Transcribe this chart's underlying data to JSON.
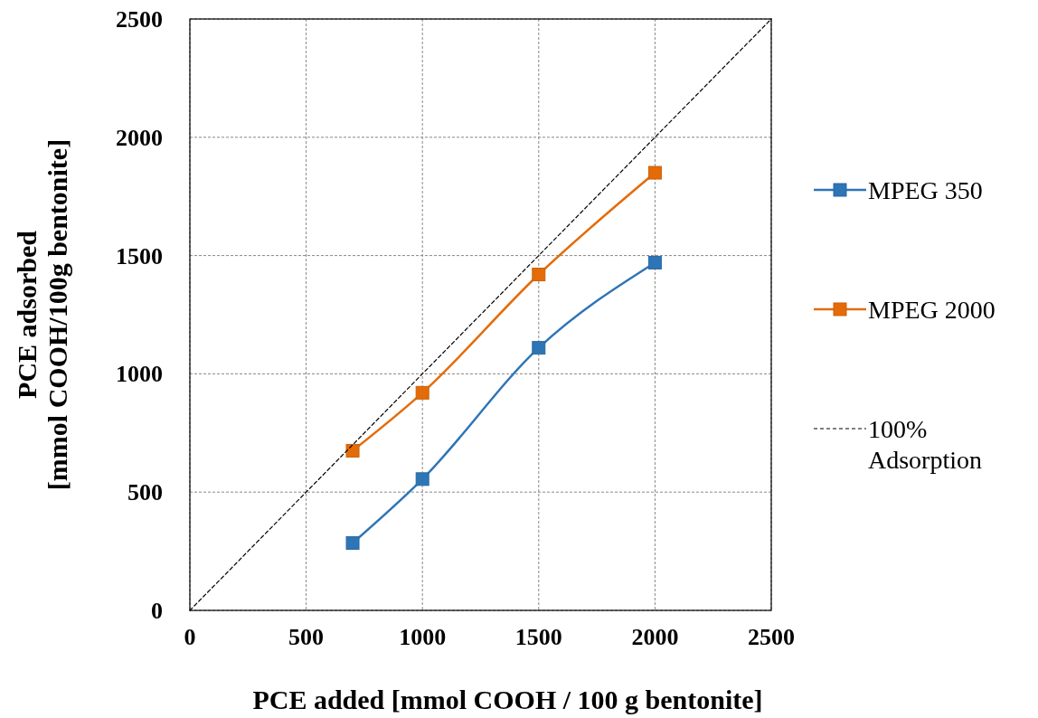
{
  "chart_data": {
    "type": "line",
    "xlabel": "PCE added [mmol COOH / 100 g bentonite]",
    "ylabel": "PCE adsorbed\n[mmol COOH/100g bentonite]",
    "xlim": [
      0,
      2500
    ],
    "xticks": [
      0,
      500,
      1000,
      1500,
      2000,
      2500
    ],
    "ylim": [
      0,
      2500
    ],
    "yticks": [
      0,
      500,
      1000,
      1500,
      2000,
      2500
    ],
    "grid": true,
    "legend": "right",
    "series": [
      {
        "name": "MPEG 350",
        "color": "#2e75b6",
        "marker": "square",
        "x": [
          700,
          1000,
          1500,
          2000
        ],
        "values": [
          285,
          555,
          1110,
          1470
        ]
      },
      {
        "name": "MPEG 2000",
        "color": "#e36c09",
        "marker": "square",
        "x": [
          700,
          1000,
          1500,
          2000
        ],
        "values": [
          675,
          920,
          1420,
          1850
        ]
      },
      {
        "name": "100% Adsorption",
        "color": "#000000",
        "marker": "none",
        "line_style": "dashed",
        "x": [
          0,
          2500
        ],
        "values": [
          0,
          2500
        ]
      }
    ]
  }
}
